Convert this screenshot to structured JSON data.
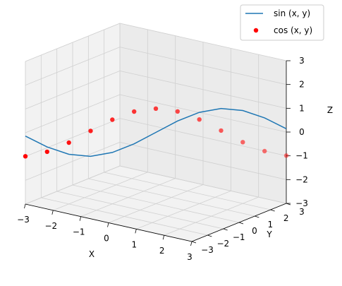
{
  "chart_data": {
    "type": "line",
    "projection": "3d",
    "title": "",
    "xlabel": "X",
    "ylabel": "Y",
    "zlabel": "Z",
    "xlim": [
      -3,
      3
    ],
    "ylim": [
      -3,
      3
    ],
    "zlim": [
      -3,
      3
    ],
    "xticks": [
      "−3",
      "−2",
      "−1",
      "0",
      "1",
      "2",
      "3"
    ],
    "yticks": [
      "−3",
      "−2",
      "−1",
      "0",
      "1",
      "2",
      "3"
    ],
    "zticks": [
      "−3",
      "−2",
      "−1",
      "0",
      "1",
      "2",
      "3"
    ],
    "grid": true,
    "legend_position": "top-right",
    "series": [
      {
        "name": "sin (x, y)",
        "kind": "line",
        "color": "#1f77b4",
        "x": [
          -3,
          -2.5,
          -2,
          -1.5,
          -1,
          -0.5,
          0,
          0.5,
          1,
          1.5,
          2,
          2.5,
          3
        ],
        "y": [
          -3,
          -2.5,
          -2,
          -1.5,
          -1,
          -0.5,
          0,
          0.5,
          1,
          1.5,
          2,
          2.5,
          3
        ],
        "z": [
          -0.14,
          -0.6,
          -0.91,
          -1.0,
          -0.84,
          -0.48,
          0,
          0.48,
          0.84,
          1.0,
          0.91,
          0.6,
          0.14
        ]
      },
      {
        "name": "cos (x, y)",
        "kind": "scatter",
        "color": "#ff0000",
        "x": [
          -3,
          -2.5,
          -2,
          -1.5,
          -1,
          -0.5,
          0,
          0.5,
          1,
          1.5,
          2,
          2.5,
          3
        ],
        "y": [
          -3,
          -2.5,
          -2,
          -1.5,
          -1,
          -0.5,
          0,
          0.5,
          1,
          1.5,
          2,
          2.5,
          3
        ],
        "z": [
          -0.99,
          -0.8,
          -0.42,
          0.07,
          0.54,
          0.88,
          1.0,
          0.88,
          0.54,
          0.07,
          -0.42,
          -0.8,
          -0.99
        ]
      }
    ]
  }
}
